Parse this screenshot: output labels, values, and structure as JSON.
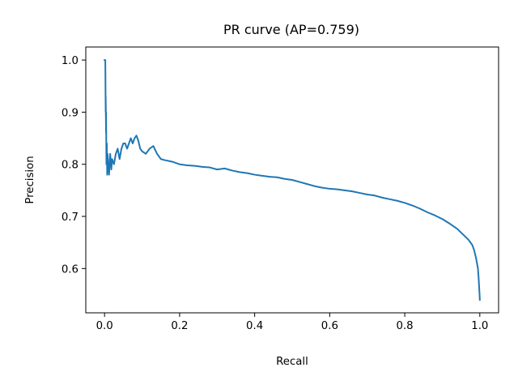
{
  "chart_data": {
    "type": "line",
    "title": "PR curve (AP=0.759)",
    "xlabel": "Recall",
    "ylabel": "Precision",
    "xlim": [
      -0.05,
      1.05
    ],
    "ylim": [
      0.515,
      1.025
    ],
    "grid": false,
    "legend": "none",
    "x_ticks": [
      0.0,
      0.2,
      0.4,
      0.6,
      0.8,
      1.0
    ],
    "x_tick_labels": [
      "0.0",
      "0.2",
      "0.4",
      "0.6",
      "0.8",
      "1.0"
    ],
    "y_ticks": [
      0.6,
      0.7,
      0.8,
      0.9,
      1.0
    ],
    "y_tick_labels": [
      "0.6",
      "0.7",
      "0.8",
      "0.9",
      "1.0"
    ],
    "series": [
      {
        "color": "#1f77b4",
        "x": [
          0.0,
          0.002,
          0.003,
          0.003,
          0.004,
          0.004,
          0.005,
          0.006,
          0.007,
          0.008,
          0.01,
          0.012,
          0.015,
          0.018,
          0.02,
          0.025,
          0.03,
          0.035,
          0.04,
          0.045,
          0.05,
          0.055,
          0.06,
          0.065,
          0.07,
          0.075,
          0.08,
          0.085,
          0.09,
          0.095,
          0.1,
          0.11,
          0.12,
          0.13,
          0.14,
          0.15,
          0.16,
          0.18,
          0.2,
          0.22,
          0.24,
          0.26,
          0.28,
          0.3,
          0.32,
          0.34,
          0.36,
          0.38,
          0.4,
          0.42,
          0.44,
          0.46,
          0.48,
          0.5,
          0.52,
          0.54,
          0.56,
          0.58,
          0.6,
          0.62,
          0.64,
          0.66,
          0.68,
          0.7,
          0.72,
          0.74,
          0.76,
          0.78,
          0.8,
          0.82,
          0.84,
          0.86,
          0.88,
          0.9,
          0.92,
          0.94,
          0.95,
          0.96,
          0.97,
          0.98,
          0.985,
          0.99,
          0.995,
          0.997,
          0.999,
          1.0
        ],
        "values": [
          1.0,
          1.0,
          0.9,
          0.93,
          0.86,
          0.9,
          0.8,
          0.84,
          0.78,
          0.82,
          0.8,
          0.78,
          0.82,
          0.79,
          0.81,
          0.8,
          0.82,
          0.83,
          0.81,
          0.83,
          0.84,
          0.84,
          0.83,
          0.84,
          0.85,
          0.84,
          0.85,
          0.855,
          0.845,
          0.83,
          0.825,
          0.82,
          0.83,
          0.835,
          0.82,
          0.81,
          0.808,
          0.805,
          0.8,
          0.798,
          0.797,
          0.795,
          0.794,
          0.79,
          0.792,
          0.788,
          0.785,
          0.783,
          0.78,
          0.778,
          0.776,
          0.775,
          0.772,
          0.77,
          0.766,
          0.762,
          0.758,
          0.755,
          0.753,
          0.752,
          0.75,
          0.748,
          0.745,
          0.742,
          0.74,
          0.736,
          0.733,
          0.73,
          0.726,
          0.721,
          0.715,
          0.708,
          0.702,
          0.695,
          0.686,
          0.676,
          0.669,
          0.662,
          0.655,
          0.645,
          0.635,
          0.62,
          0.6,
          0.58,
          0.555,
          0.54
        ]
      }
    ]
  }
}
